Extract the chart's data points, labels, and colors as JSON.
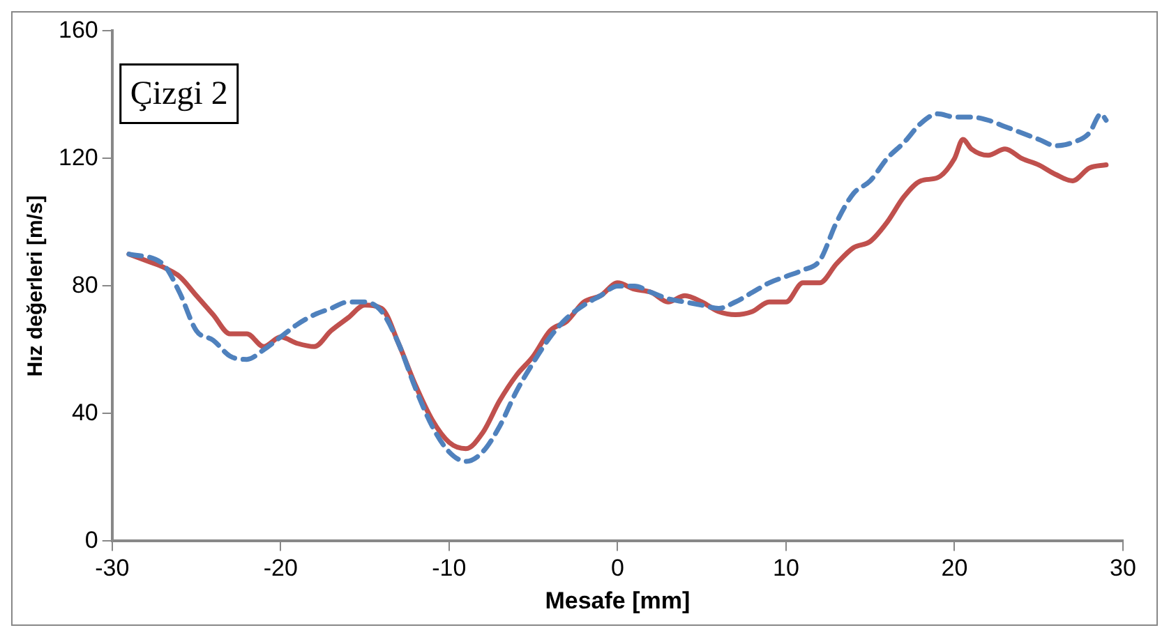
{
  "chart_data": {
    "type": "line",
    "xlabel": "Mesafe [mm]",
    "ylabel": "Hız değerleri [m/s]",
    "annotations": [
      "Çizgi 2"
    ],
    "xlim": [
      -30,
      30
    ],
    "xticks": [
      -30,
      -20,
      -10,
      0,
      10,
      20,
      30
    ],
    "ylim": [
      0,
      160
    ],
    "yticks": [
      0,
      40,
      80,
      120,
      160
    ],
    "grid": false,
    "legend": false,
    "marker": "none",
    "series": [
      {
        "color": "#4f81bd",
        "line_style": "dashed",
        "x": [
          -29,
          -27,
          -26,
          -25,
          -24,
          -23,
          -22,
          -21,
          -20,
          -19,
          -18,
          -17,
          -16,
          -15,
          -14,
          -13,
          -12,
          -11,
          -10,
          -9,
          -8,
          -7,
          -6,
          -5,
          -4,
          -3,
          -2,
          -1,
          0,
          1,
          2,
          3,
          4,
          5,
          6,
          7,
          8,
          9,
          10,
          11,
          12,
          13,
          14,
          15,
          16,
          17,
          18,
          19,
          20,
          21,
          22,
          23,
          24,
          25,
          26,
          27,
          28,
          28.7,
          29
        ],
        "values": [
          90,
          87,
          78,
          66,
          63,
          58,
          57,
          60,
          64,
          68,
          71,
          73,
          75,
          75,
          72,
          62,
          48,
          36,
          28,
          25,
          28,
          36,
          47,
          56,
          64,
          70,
          74,
          77,
          80,
          80,
          78,
          76,
          75,
          74,
          73,
          75,
          78,
          81,
          83,
          85,
          88,
          100,
          109,
          113,
          120,
          125,
          131,
          134,
          133,
          133,
          132,
          130,
          128,
          126,
          124,
          125,
          128,
          134,
          132
        ]
      },
      {
        "color": "#c0504d",
        "line_style": "solid",
        "x": [
          -29,
          -28,
          -27,
          -26,
          -25,
          -24,
          -23,
          -22,
          -21,
          -20,
          -19,
          -18,
          -17,
          -16,
          -15,
          -14,
          -13,
          -12,
          -11,
          -10,
          -9,
          -8,
          -7,
          -6,
          -5,
          -4,
          -3,
          -2,
          -1,
          0,
          1,
          2,
          3,
          4,
          5,
          6,
          7,
          8,
          9,
          10,
          11,
          12,
          13,
          14,
          15,
          16,
          17,
          18,
          19,
          20,
          20.5,
          21,
          22,
          23,
          24,
          25,
          26,
          27,
          28,
          29
        ],
        "values": [
          90,
          88,
          86,
          83,
          77,
          71,
          65,
          65,
          61,
          64,
          62,
          61,
          66,
          70,
          74,
          73,
          62,
          49,
          38,
          31,
          29,
          34,
          44,
          52,
          58,
          66,
          69,
          75,
          77,
          81,
          79,
          78,
          75,
          77,
          75,
          72,
          71,
          72,
          75,
          75,
          81,
          81,
          87,
          92,
          94,
          100,
          108,
          113,
          114,
          120,
          126,
          123,
          121,
          123,
          120,
          118,
          115,
          113,
          117,
          118
        ]
      }
    ]
  }
}
